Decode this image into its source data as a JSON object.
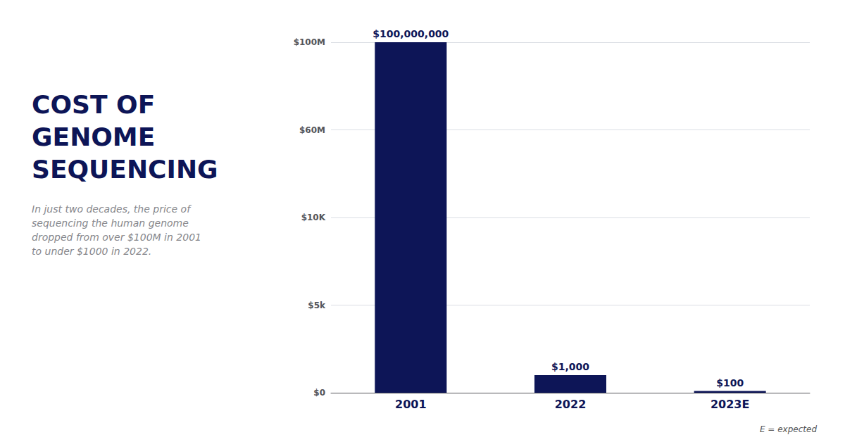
{
  "chart_data": {
    "type": "bar",
    "title": "COST OF\nGENOME\nSEQUENCING",
    "subtitle": "In just two decades, the price of\nsequencing the human genome\ndropped from over $100M in 2001\nto under $1000 in 2022.",
    "categories": [
      "2001",
      "2022",
      "2023E"
    ],
    "values": [
      100000000,
      1000,
      100
    ],
    "value_labels": [
      "$100,000,000",
      "$1,000",
      "$100"
    ],
    "data_labels": true,
    "color": "#0d1557",
    "ylim": [
      0,
      100000000
    ],
    "yticks": [
      {
        "value": 0,
        "label": "$0"
      },
      {
        "value": 5000,
        "label": "$5k"
      },
      {
        "value": 10000,
        "label": "$10K"
      },
      {
        "value": 60000000,
        "label": "$60M"
      },
      {
        "value": 100000000,
        "label": "$100M"
      }
    ],
    "grid": true,
    "annotations": [
      "E = expected"
    ]
  }
}
